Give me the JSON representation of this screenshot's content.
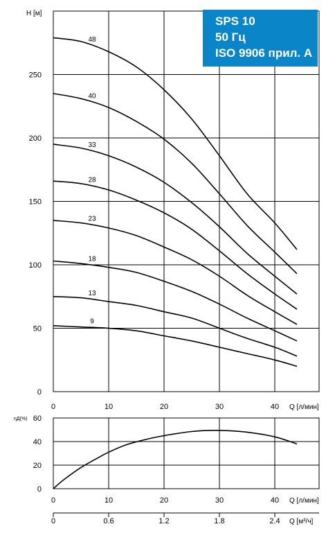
{
  "badge": {
    "line1": "SPS 10",
    "line2": "50 Гц",
    "line3": "ISO 9906 прил. A",
    "color": "#0a86c8"
  },
  "chart_data": [
    {
      "type": "line",
      "ylabel": "H [м]",
      "xlabel": "Q [л/мин]",
      "xlim": [
        0,
        48
      ],
      "ylim": [
        0,
        300
      ],
      "x_ticks": [
        0,
        10,
        20,
        30,
        40
      ],
      "y_ticks": [
        0,
        50,
        100,
        150,
        200,
        250
      ],
      "grid": true,
      "series": [
        {
          "name": "48",
          "x": [
            0,
            5,
            10,
            15,
            20,
            25,
            30,
            35,
            40,
            44
          ],
          "values": [
            279,
            276,
            268,
            256,
            238,
            215,
            186,
            156,
            133,
            112
          ]
        },
        {
          "name": "40",
          "x": [
            0,
            5,
            10,
            15,
            20,
            25,
            30,
            35,
            40,
            44
          ],
          "values": [
            235,
            231,
            224,
            213,
            199,
            180,
            156,
            131,
            110,
            93
          ]
        },
        {
          "name": "33",
          "x": [
            0,
            5,
            10,
            15,
            20,
            25,
            30,
            35,
            40,
            44
          ],
          "values": [
            195,
            192,
            186,
            177,
            165,
            149,
            130,
            109,
            91,
            77
          ]
        },
        {
          "name": "28",
          "x": [
            0,
            5,
            10,
            15,
            20,
            25,
            30,
            35,
            40,
            44
          ],
          "values": [
            166,
            164,
            159,
            151,
            141,
            128,
            111,
            93,
            77,
            65
          ]
        },
        {
          "name": "23",
          "x": [
            0,
            5,
            10,
            15,
            20,
            25,
            30,
            35,
            40,
            44
          ],
          "values": [
            135,
            133,
            129,
            123,
            114,
            104,
            91,
            76,
            63,
            53
          ]
        },
        {
          "name": "18",
          "x": [
            0,
            5,
            10,
            15,
            20,
            25,
            30,
            35,
            40,
            44
          ],
          "values": [
            103,
            101,
            98,
            94,
            87,
            79,
            69,
            58,
            48,
            40
          ]
        },
        {
          "name": "13",
          "x": [
            0,
            5,
            10,
            15,
            20,
            25,
            30,
            35,
            40,
            44
          ],
          "values": [
            75,
            74,
            71,
            68,
            63,
            58,
            50,
            42,
            35,
            28
          ]
        },
        {
          "name": "9",
          "x": [
            0,
            5,
            10,
            15,
            20,
            25,
            30,
            35,
            40,
            44
          ],
          "values": [
            52,
            51,
            50,
            48,
            44,
            40,
            35,
            30,
            25,
            20
          ]
        }
      ]
    },
    {
      "type": "line",
      "ylabel": "ηД(%)",
      "xlabel": "Q [л/мин]",
      "xlim": [
        0,
        48
      ],
      "ylim": [
        0,
        60
      ],
      "x_ticks": [
        0,
        10,
        20,
        30,
        40
      ],
      "y_ticks": [
        0,
        20,
        40,
        60
      ],
      "grid": true,
      "series": [
        {
          "name": "",
          "x": [
            0,
            2,
            5,
            8,
            10,
            13,
            16,
            20,
            25,
            30,
            35,
            40,
            44
          ],
          "values": [
            0,
            8,
            18,
            26,
            31,
            37,
            41,
            45,
            48.5,
            49.5,
            48,
            44,
            38
          ]
        }
      ]
    },
    {
      "type": "axis",
      "xlabel": "Q [м³/ч]",
      "xlim": [
        0,
        2.88
      ],
      "x_ticks": [
        0,
        0.6,
        1.2,
        1.8,
        2.4
      ],
      "x_tick_labels": [
        "0",
        "0.6",
        "1.2",
        "1.8",
        "2.4"
      ]
    }
  ]
}
